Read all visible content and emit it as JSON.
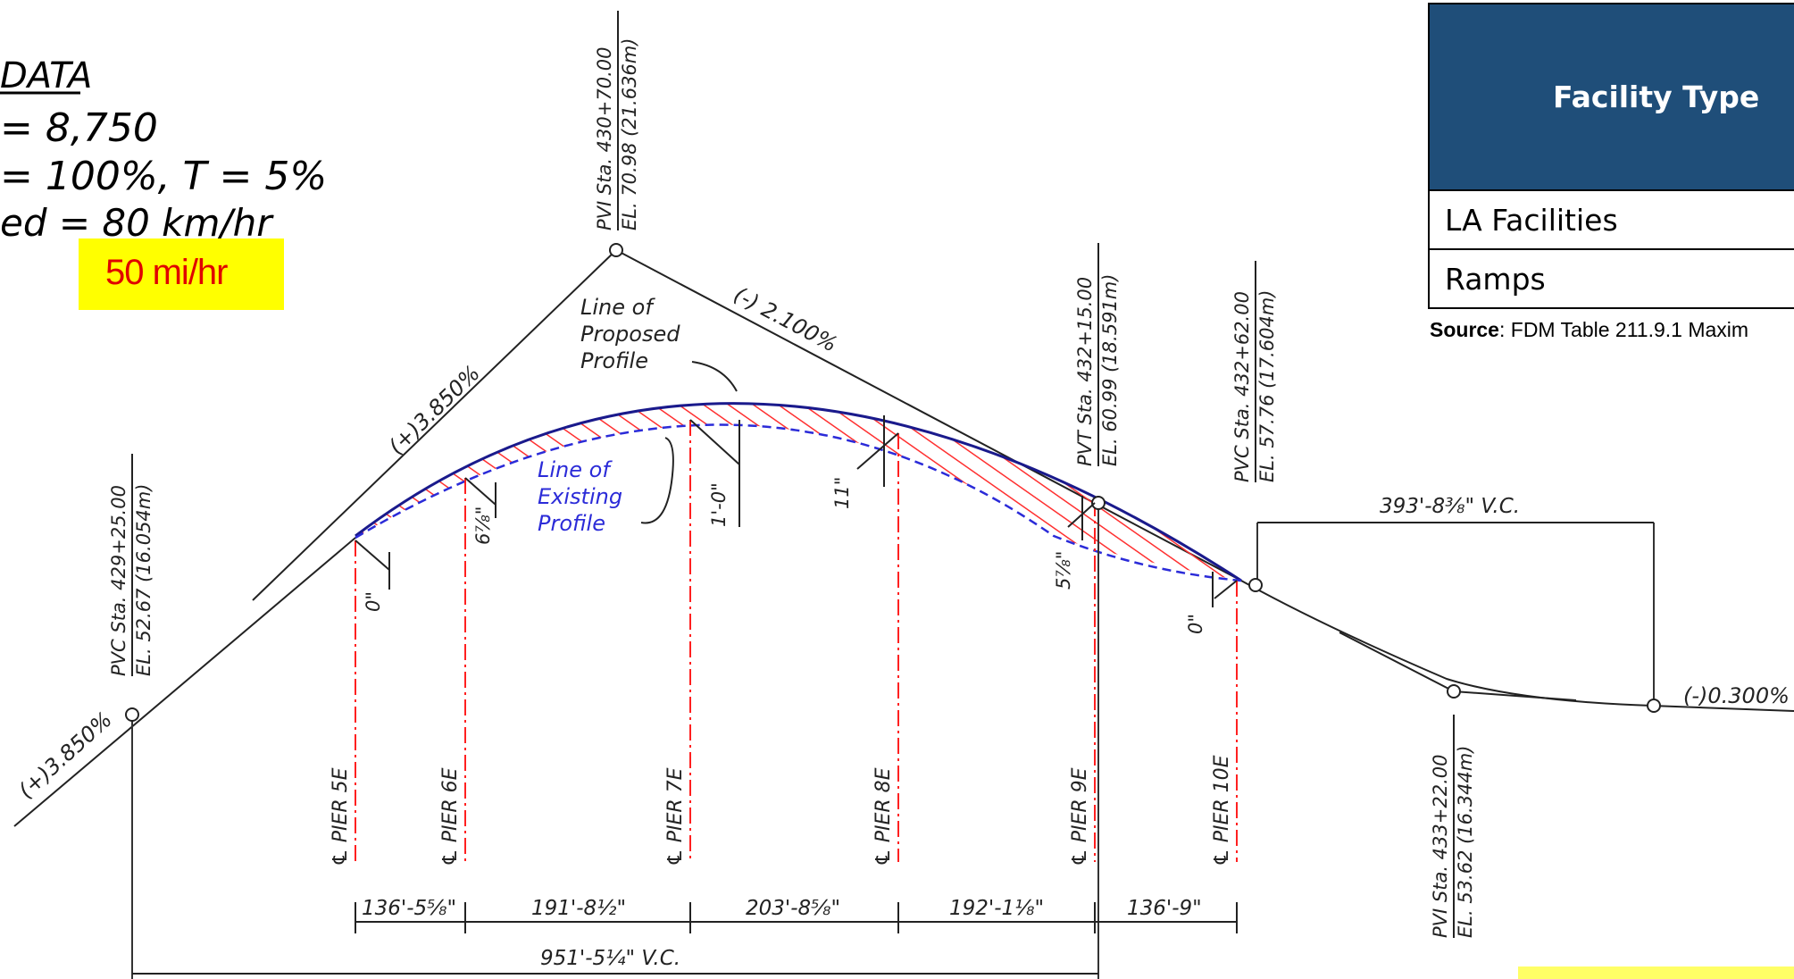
{
  "design_data": {
    "title": "DATA",
    "line1": "= 8,750",
    "line2": "= 100%, T = 5%",
    "line3": "ed = 80 km/hr",
    "highlight": "50 mi/hr"
  },
  "points": {
    "pvi_top": "PVI Sta. 430+70.00",
    "pvi_top_el": "EL. 70.98 (21.636m)",
    "pvc_left": "PVC Sta. 429+25.00",
    "pvc_left_el": "EL. 52.67 (16.054m)",
    "pvt": "PVT Sta. 432+15.00",
    "pvt_el": "EL. 60.99 (18.591m)",
    "pvc_right": "PVC Sta. 432+62.00",
    "pvc_right_el": "EL. 57.76 (17.604m)",
    "pvi_right": "PVI Sta. 433+22.00",
    "pvi_right_el": "EL. 53.62 (16.344m)"
  },
  "grades": {
    "left_grade_low": "(+)3.850%",
    "left_grade_up": "(+)3.850%",
    "down_grade": "(-) 2.100%",
    "right_grade": "(-)0.300%"
  },
  "profile_labels": {
    "proposed": [
      "Line of",
      "Proposed",
      "Profile"
    ],
    "existing": [
      "Line of",
      "Existing",
      "Profile"
    ]
  },
  "piers": [
    "℄ PIER 5E",
    "℄ PIER 6E",
    "℄ PIER 7E",
    "℄ PIER 8E",
    "℄ PIER 9E",
    "℄ PIER 10E"
  ],
  "offsets": [
    "0\"",
    "6⅞\"",
    "1'-0\"",
    "11\"",
    "5⅞\"",
    "0\""
  ],
  "spans": [
    "136'-5⅝\"",
    "191'-8½\"",
    "203'-8⅝\"",
    "192'-1⅛\"",
    "136'-9\""
  ],
  "vc_main": "951'-5¼\" V.C.",
  "vc_right": "393'-8⅜\" V.C.",
  "table": {
    "header": "Facility Type",
    "rows": [
      "LA Facilities",
      "Ramps"
    ]
  },
  "source": {
    "label": "Source",
    "text": ": FDM Table 211.9.1 Maxim"
  },
  "colors": {
    "table_header": "#1f4e79",
    "highlight": "#ffff00",
    "highlight_text": "#e00000",
    "proposed": "#1a1a8c",
    "existing": "#2b2bd8",
    "hatch": "#ff3030"
  }
}
